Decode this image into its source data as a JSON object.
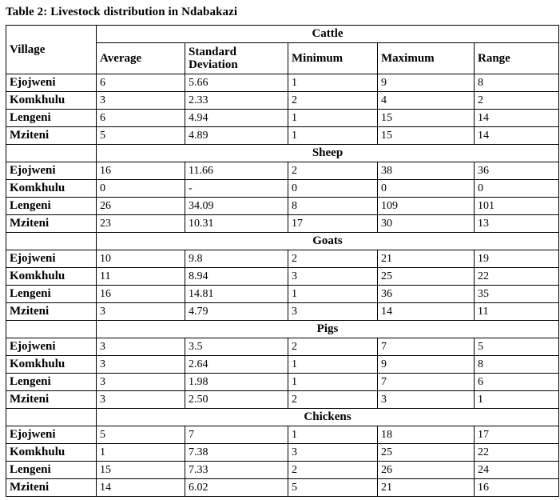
{
  "title": "Table 2: Livestock distribution in Ndabakazi",
  "table": {
    "village_header": "Village",
    "stat_headers": [
      "Average",
      "Standard Deviation",
      "Minimum",
      "Maximum",
      "Range"
    ],
    "sections": [
      {
        "name": "Cattle",
        "rows": [
          {
            "village": "Ejojweni",
            "values": [
              "6",
              "5.66",
              "1",
              "9",
              "8"
            ]
          },
          {
            "village": "Komkhulu",
            "values": [
              "3",
              "2.33",
              "2",
              "4",
              "2"
            ]
          },
          {
            "village": "Lengeni",
            "values": [
              "6",
              "4.94",
              "1",
              "15",
              "14"
            ]
          },
          {
            "village": "Mziteni",
            "values": [
              "5",
              "4.89",
              "1",
              "15",
              "14"
            ]
          }
        ]
      },
      {
        "name": "Sheep",
        "rows": [
          {
            "village": "Ejojweni",
            "values": [
              "16",
              "11.66",
              "2",
              "38",
              "36"
            ]
          },
          {
            "village": "Komkhulu",
            "values": [
              "0",
              "-",
              "0",
              "0",
              "0"
            ]
          },
          {
            "village": "Lengeni",
            "values": [
              "26",
              "34.09",
              "8",
              "109",
              "101"
            ]
          },
          {
            "village": "Mziteni",
            "values": [
              "23",
              "10.31",
              "17",
              "30",
              "13"
            ]
          }
        ]
      },
      {
        "name": "Goats",
        "rows": [
          {
            "village": "Ejojweni",
            "values": [
              "10",
              "9.8",
              "2",
              "21",
              "19"
            ]
          },
          {
            "village": "Komkhulu",
            "values": [
              "11",
              "8.94",
              "3",
              "25",
              "22"
            ]
          },
          {
            "village": "Lengeni",
            "values": [
              "16",
              "14.81",
              "1",
              "36",
              "35"
            ]
          },
          {
            "village": "Mziteni",
            "values": [
              "3",
              "4.79",
              "3",
              "14",
              "11"
            ]
          }
        ]
      },
      {
        "name": "Pigs",
        "rows": [
          {
            "village": "Ejojweni",
            "values": [
              "3",
              "3.5",
              "2",
              "7",
              "5"
            ]
          },
          {
            "village": "Komkhulu",
            "values": [
              "3",
              "2.64",
              "1",
              "9",
              "8"
            ]
          },
          {
            "village": "Lengeni",
            "values": [
              "3",
              "1.98",
              "1",
              "7",
              "6"
            ]
          },
          {
            "village": "Mziteni",
            "values": [
              "3",
              "2.50",
              "2",
              "3",
              "1"
            ]
          }
        ]
      },
      {
        "name": "Chickens",
        "rows": [
          {
            "village": "Ejojweni",
            "values": [
              "5",
              "7",
              "1",
              "18",
              "17"
            ]
          },
          {
            "village": "Komkhulu",
            "values": [
              "1",
              "7.38",
              "3",
              "25",
              "22"
            ]
          },
          {
            "village": "Lengeni",
            "values": [
              "15",
              "7.33",
              "2",
              "26",
              "24"
            ]
          },
          {
            "village": "Mziteni",
            "values": [
              "14",
              "6.02",
              "5",
              "21",
              "16"
            ]
          }
        ]
      }
    ]
  }
}
